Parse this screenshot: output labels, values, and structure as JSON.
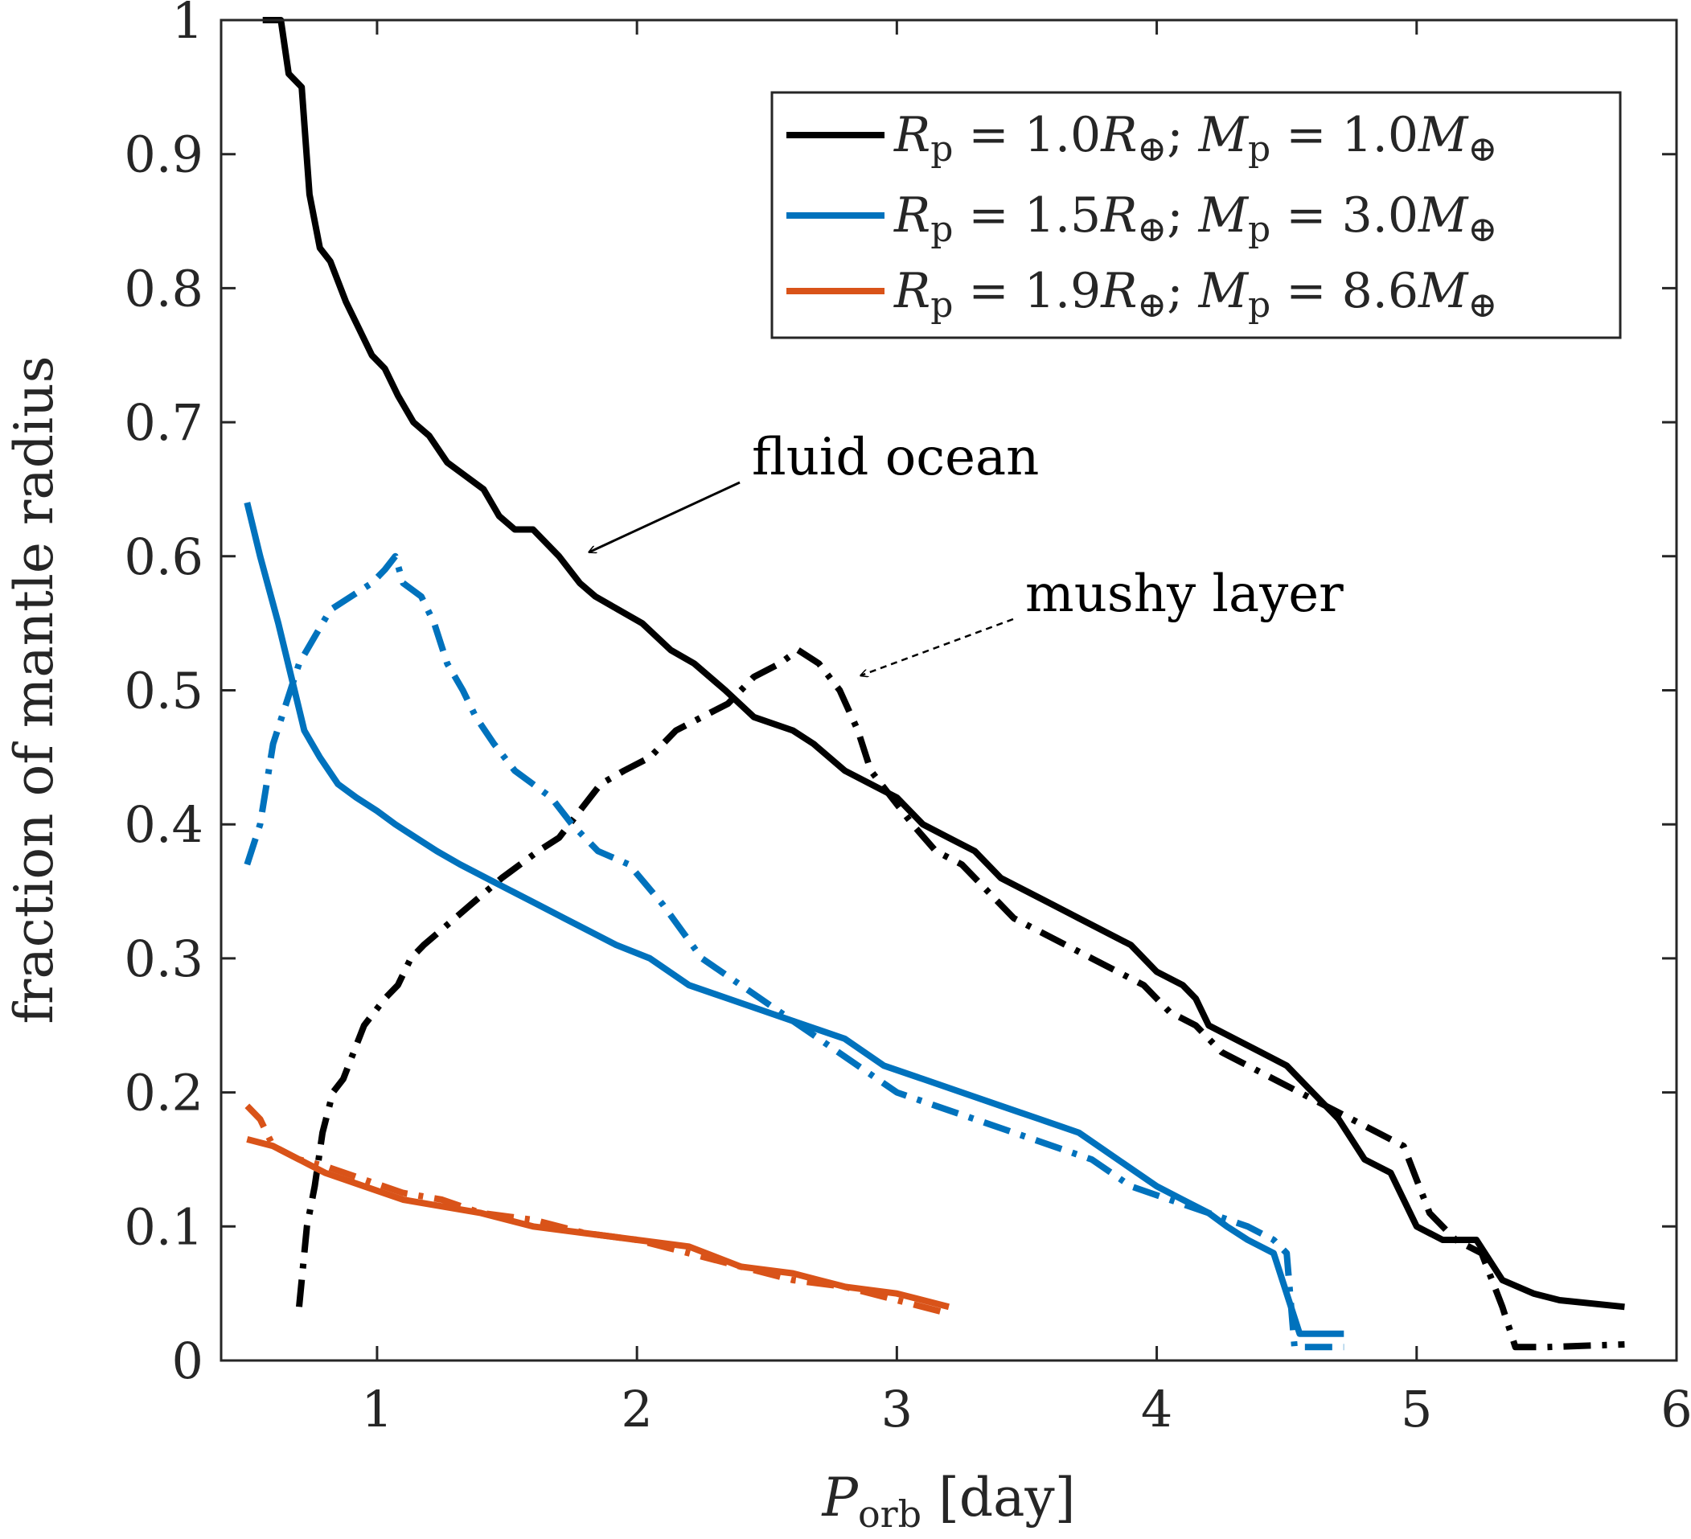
{
  "chart_data": {
    "type": "line",
    "xlabel_main": "P",
    "xlabel_sub": "orb",
    "xlabel_unit": "[day]",
    "ylabel": "fraction of mantle radius",
    "xlim": [
      0.4,
      6
    ],
    "ylim": [
      0,
      1
    ],
    "xticks": [
      "1",
      "2",
      "3",
      "4",
      "5",
      "6"
    ],
    "yticks": [
      "0",
      "0.1",
      "0.2",
      "0.3",
      "0.4",
      "0.5",
      "0.6",
      "0.7",
      "0.8",
      "0.9",
      "1"
    ],
    "legend_position": "top-right",
    "colors": {
      "black": "#000000",
      "blue": "#0072BD",
      "orange": "#D95319",
      "axis": "#262626"
    },
    "series": [
      {
        "name": "fluid ocean, R_p = 1.0R_⊕; M_p = 1.0M_⊕",
        "legend": {
          "r": "1.0",
          "m": "1.0"
        },
        "color": "black",
        "style": "solid",
        "x": [
          0.56,
          0.63,
          0.66,
          0.71,
          0.74,
          0.78,
          0.82,
          0.88,
          0.93,
          0.98,
          1.03,
          1.08,
          1.14,
          1.2,
          1.27,
          1.34,
          1.41,
          1.47,
          1.53,
          1.6,
          1.7,
          1.78,
          1.84,
          1.93,
          2.02,
          2.13,
          2.22,
          2.34,
          2.45,
          2.6,
          2.68,
          2.8,
          2.9,
          3.0,
          3.1,
          3.2,
          3.3,
          3.4,
          3.5,
          3.6,
          3.7,
          3.8,
          3.9,
          4.0,
          4.1,
          4.15,
          4.2,
          4.3,
          4.4,
          4.5,
          4.6,
          4.7,
          4.8,
          4.9,
          5.0,
          5.1,
          5.23,
          5.33,
          5.45,
          5.55,
          5.8
        ],
        "values": [
          1.0,
          1.0,
          0.96,
          0.95,
          0.87,
          0.83,
          0.82,
          0.79,
          0.77,
          0.75,
          0.74,
          0.72,
          0.7,
          0.69,
          0.67,
          0.66,
          0.65,
          0.63,
          0.62,
          0.62,
          0.6,
          0.58,
          0.57,
          0.56,
          0.55,
          0.53,
          0.52,
          0.5,
          0.48,
          0.47,
          0.46,
          0.44,
          0.43,
          0.42,
          0.4,
          0.39,
          0.38,
          0.36,
          0.35,
          0.34,
          0.33,
          0.32,
          0.31,
          0.29,
          0.28,
          0.27,
          0.25,
          0.24,
          0.23,
          0.22,
          0.2,
          0.18,
          0.15,
          0.14,
          0.1,
          0.09,
          0.09,
          0.06,
          0.05,
          0.045,
          0.04
        ]
      },
      {
        "name": "mushy layer, R_p = 1.0R_⊕; M_p = 1.0M_⊕",
        "color": "black",
        "style": "dashed",
        "x": [
          0.7,
          0.73,
          0.76,
          0.79,
          0.83,
          0.87,
          0.91,
          0.95,
          0.99,
          1.03,
          1.08,
          1.13,
          1.18,
          1.24,
          1.3,
          1.36,
          1.42,
          1.48,
          1.55,
          1.62,
          1.7,
          1.78,
          1.86,
          1.95,
          2.05,
          2.15,
          2.25,
          2.35,
          2.45,
          2.55,
          2.62,
          2.7,
          2.78,
          2.85,
          2.9,
          2.98,
          3.06,
          3.15,
          3.25,
          3.35,
          3.45,
          3.55,
          3.65,
          3.75,
          3.85,
          3.95,
          4.05,
          4.15,
          4.25,
          4.35,
          4.45,
          4.55,
          4.65,
          4.75,
          4.85,
          4.95,
          5.05,
          5.15,
          5.25,
          5.33,
          5.38,
          5.5,
          5.8
        ],
        "values": [
          0.04,
          0.1,
          0.13,
          0.17,
          0.2,
          0.21,
          0.23,
          0.25,
          0.26,
          0.27,
          0.28,
          0.3,
          0.31,
          0.32,
          0.33,
          0.34,
          0.35,
          0.36,
          0.37,
          0.38,
          0.39,
          0.41,
          0.43,
          0.44,
          0.45,
          0.47,
          0.48,
          0.49,
          0.51,
          0.52,
          0.53,
          0.52,
          0.5,
          0.47,
          0.44,
          0.42,
          0.4,
          0.38,
          0.37,
          0.35,
          0.33,
          0.32,
          0.31,
          0.3,
          0.29,
          0.28,
          0.26,
          0.25,
          0.23,
          0.22,
          0.21,
          0.2,
          0.19,
          0.18,
          0.17,
          0.16,
          0.11,
          0.09,
          0.08,
          0.04,
          0.01,
          0.01,
          0.012
        ]
      },
      {
        "name": "fluid ocean, R_p = 1.5R_⊕; M_p = 3.0M_⊕",
        "legend": {
          "r": "1.5",
          "m": "3.0"
        },
        "color": "blue",
        "style": "solid",
        "x": [
          0.5,
          0.55,
          0.62,
          0.67,
          0.72,
          0.78,
          0.85,
          0.92,
          1.0,
          1.07,
          1.15,
          1.23,
          1.32,
          1.42,
          1.52,
          1.62,
          1.72,
          1.82,
          1.92,
          2.05,
          2.2,
          2.35,
          2.5,
          2.65,
          2.8,
          2.95,
          3.1,
          3.25,
          3.4,
          3.55,
          3.7,
          3.85,
          4.0,
          4.1,
          4.2,
          4.27,
          4.35,
          4.45,
          4.55,
          4.72
        ],
        "values": [
          0.64,
          0.6,
          0.55,
          0.51,
          0.47,
          0.45,
          0.43,
          0.42,
          0.41,
          0.4,
          0.39,
          0.38,
          0.37,
          0.36,
          0.35,
          0.34,
          0.33,
          0.32,
          0.31,
          0.3,
          0.28,
          0.27,
          0.26,
          0.25,
          0.24,
          0.22,
          0.21,
          0.2,
          0.19,
          0.18,
          0.17,
          0.15,
          0.13,
          0.12,
          0.11,
          0.1,
          0.09,
          0.08,
          0.02,
          0.02
        ]
      },
      {
        "name": "mushy layer, R_p = 1.5R_⊕; M_p = 3.0M_⊕",
        "color": "blue",
        "style": "dashed",
        "x": [
          0.5,
          0.55,
          0.6,
          0.65,
          0.7,
          0.76,
          0.82,
          0.9,
          0.98,
          1.03,
          1.07,
          1.1,
          1.17,
          1.22,
          1.27,
          1.33,
          1.38,
          1.45,
          1.53,
          1.6,
          1.67,
          1.75,
          1.85,
          1.97,
          2.1,
          2.25,
          2.4,
          2.55,
          2.7,
          2.85,
          3.0,
          3.15,
          3.3,
          3.45,
          3.6,
          3.75,
          3.9,
          4.05,
          4.2,
          4.35,
          4.45,
          4.5,
          4.53,
          4.6,
          4.72
        ],
        "values": [
          0.37,
          0.4,
          0.46,
          0.49,
          0.52,
          0.54,
          0.56,
          0.57,
          0.58,
          0.59,
          0.6,
          0.58,
          0.57,
          0.55,
          0.52,
          0.5,
          0.48,
          0.46,
          0.44,
          0.43,
          0.42,
          0.4,
          0.38,
          0.37,
          0.34,
          0.3,
          0.28,
          0.26,
          0.24,
          0.22,
          0.2,
          0.19,
          0.18,
          0.17,
          0.16,
          0.15,
          0.13,
          0.12,
          0.11,
          0.1,
          0.09,
          0.08,
          0.01,
          0.01,
          0.01
        ]
      },
      {
        "name": "fluid ocean, R_p = 1.9R_⊕; M_p = 8.6M_⊕",
        "legend": {
          "r": "1.9",
          "m": "8.6"
        },
        "color": "orange",
        "style": "solid",
        "x": [
          0.5,
          0.6,
          0.7,
          0.8,
          0.95,
          1.1,
          1.25,
          1.4,
          1.6,
          1.8,
          2.0,
          2.2,
          2.4,
          2.6,
          2.8,
          3.0,
          3.2
        ],
        "values": [
          0.165,
          0.16,
          0.15,
          0.14,
          0.13,
          0.12,
          0.115,
          0.11,
          0.1,
          0.095,
          0.09,
          0.085,
          0.07,
          0.065,
          0.055,
          0.05,
          0.04
        ]
      },
      {
        "name": "mushy layer, R_p = 1.9R_⊕; M_p = 8.6M_⊕",
        "color": "orange",
        "style": "dashed",
        "x": [
          0.5,
          0.55,
          0.6,
          0.7,
          0.8,
          0.95,
          1.1,
          1.25,
          1.4,
          1.6,
          1.8,
          2.0,
          2.2,
          2.4,
          2.6,
          2.8,
          3.0,
          3.2
        ],
        "values": [
          0.19,
          0.18,
          0.16,
          0.15,
          0.145,
          0.135,
          0.125,
          0.12,
          0.11,
          0.105,
          0.095,
          0.09,
          0.08,
          0.07,
          0.06,
          0.055,
          0.045,
          0.035
        ]
      }
    ],
    "annotations": [
      {
        "text": "fluid ocean",
        "target_x": 1.8,
        "target_y": 0.6,
        "style": "solid"
      },
      {
        "text": "mushy layer",
        "target_x": 2.83,
        "target_y": 0.505,
        "style": "dashed"
      }
    ]
  }
}
